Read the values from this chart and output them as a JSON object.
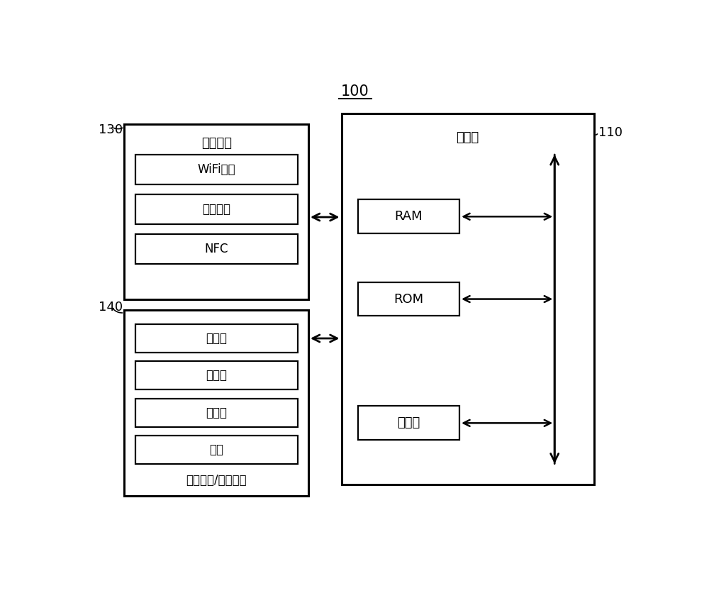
{
  "title": "100",
  "bg_color": "#ffffff",
  "label_110": "110",
  "label_130": "130",
  "label_140": "140",
  "controller_label": "控制器",
  "comm_interface_label": "通信接口",
  "user_io_label": "用户输入/输出接口",
  "wifi_label": "WiFi芯片",
  "bluetooth_label": "蓝牙模块",
  "nfc_label": "NFC",
  "ram_label": "RAM",
  "rom_label": "ROM",
  "processor_label": "处理器",
  "mic_label": "麦克风",
  "touchpad_label": "触摸板",
  "sensor_label": "传感器",
  "button_label": "按键"
}
